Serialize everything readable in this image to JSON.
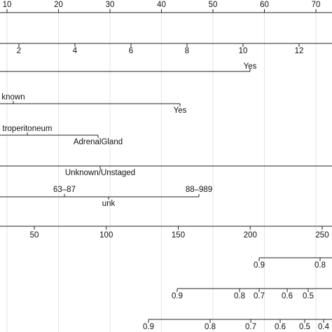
{
  "scales": [
    {
      "ticks": [
        10,
        20,
        30,
        40,
        50,
        60,
        70
      ]
    },
    {
      "ticks": [
        2,
        4,
        6,
        8,
        10,
        12
      ]
    },
    {
      "labels": [
        "Yes"
      ]
    },
    {
      "labels": [
        "known",
        "Yes"
      ]
    },
    {
      "labels": [
        "troperitoneum",
        "AdrenalGland"
      ]
    },
    {
      "labels": [
        "Unknown/Unstaged"
      ]
    },
    {
      "labels": [
        "63–87",
        "88–989",
        "unk"
      ]
    },
    {
      "ticks": [
        50,
        100,
        150,
        200,
        250
      ]
    },
    {
      "ticks": [
        0.9,
        0.8
      ]
    },
    {
      "ticks": [
        0.9,
        0.8,
        0.7,
        0.6,
        0.5
      ]
    },
    {
      "ticks": [
        0.9,
        0.8,
        0.7,
        0.6,
        0.5,
        0.4
      ]
    }
  ]
}
